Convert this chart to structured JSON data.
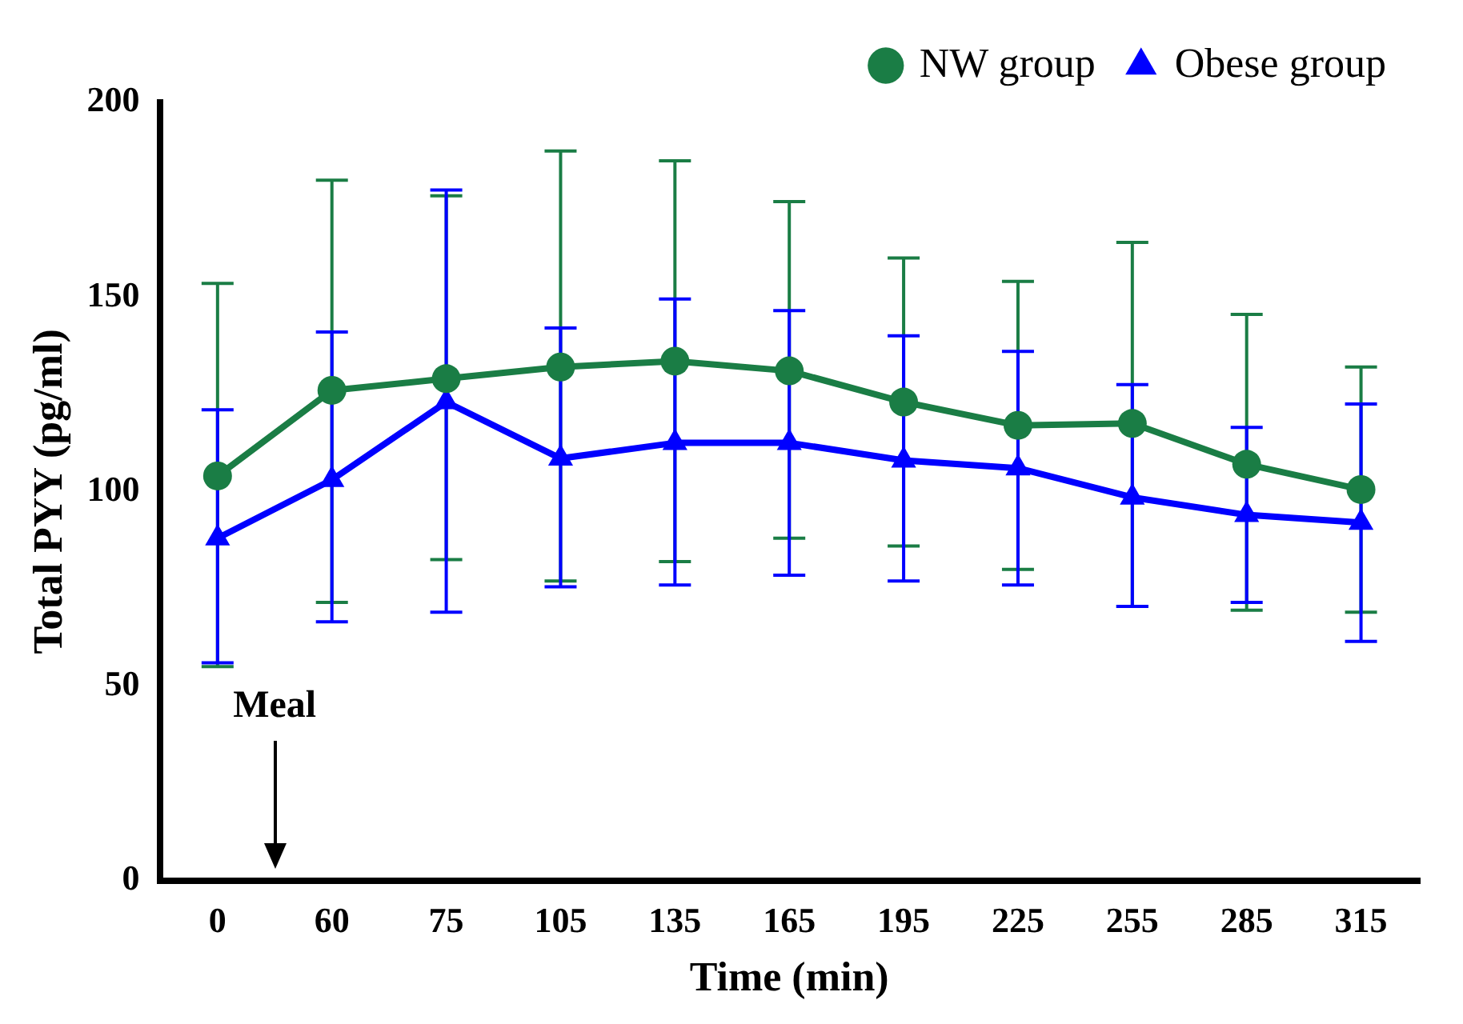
{
  "chart_data": {
    "type": "line",
    "xlabel": "Time (min)",
    "ylabel": "Total PYY (pg/ml)",
    "categories": [
      "0",
      "60",
      "75",
      "105",
      "135",
      "165",
      "195",
      "225",
      "255",
      "285",
      "315"
    ],
    "ylim": [
      0,
      200
    ],
    "yticks": [
      0,
      50,
      100,
      150,
      200
    ],
    "grid": false,
    "legend": "top right",
    "line_style": "solid",
    "annotations": [
      "Meal"
    ],
    "series": [
      {
        "name": "NW group",
        "color": "#1a7d45",
        "marker": "circle",
        "values": [
          104,
          126,
          129,
          132,
          133.5,
          131,
          123,
          117,
          117.5,
          107,
          100.5
        ],
        "errors": [
          [
            55,
            153.5
          ],
          [
            71.5,
            180
          ],
          [
            82.5,
            176
          ],
          [
            77,
            187.5
          ],
          [
            82,
            185
          ],
          [
            88,
            174.5
          ],
          [
            86,
            160
          ],
          [
            80,
            154
          ],
          [
            70.5,
            164
          ],
          [
            69.5,
            145.5
          ],
          [
            69,
            132
          ]
        ]
      },
      {
        "name": "Obese group",
        "color": "#0000ff",
        "marker": "triangle",
        "values": [
          88,
          103,
          123,
          108.5,
          112.5,
          112.5,
          108,
          106,
          98.5,
          94,
          92
        ],
        "errors": [
          [
            56,
            121
          ],
          [
            66.5,
            141
          ],
          [
            69,
            177.5
          ],
          [
            75.5,
            142
          ],
          [
            76,
            149.5
          ],
          [
            78.5,
            146.5
          ],
          [
            77,
            140
          ],
          [
            76,
            136
          ],
          [
            70.5,
            127.5
          ],
          [
            71.5,
            116.5
          ],
          [
            61.5,
            122.5
          ]
        ]
      }
    ]
  }
}
